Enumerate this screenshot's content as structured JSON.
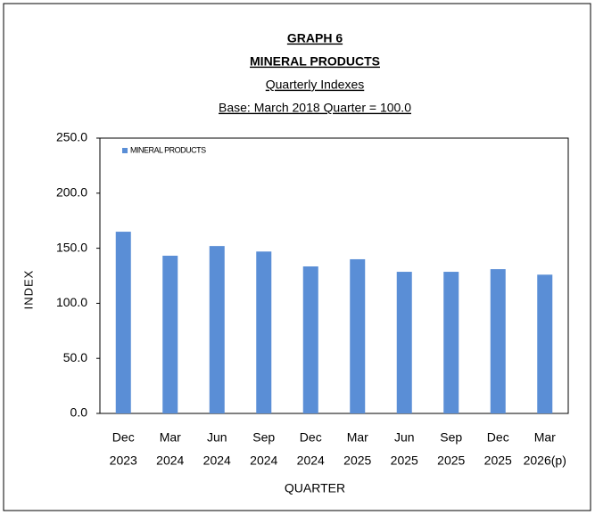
{
  "chart_data": {
    "type": "bar",
    "title": "GRAPH 6",
    "subtitle": "MINERAL PRODUCTS",
    "annotations": [
      "Quarterly Indexes",
      "Base: March 2018 Quarter = 100.0"
    ],
    "x_label": "QUARTER",
    "y_label": "INDEX",
    "categories": [
      [
        "Dec",
        "2023"
      ],
      [
        "Mar",
        "2024"
      ],
      [
        "Jun",
        "2024"
      ],
      [
        "Sep",
        "2024"
      ],
      [
        "Dec",
        "2024"
      ],
      [
        "Mar",
        "2025"
      ],
      [
        "Jun",
        "2025"
      ],
      [
        "Sep",
        "2025"
      ],
      [
        "Dec",
        "2025"
      ],
      [
        "Mar",
        "2026(p)"
      ]
    ],
    "series": [
      {
        "name": "MINERAL PRODUCTS",
        "color": "#5a8ed6",
        "values": [
          165,
          143.2,
          152,
          147,
          133.5,
          140,
          128.6,
          128.6,
          131,
          126
        ]
      }
    ],
    "ylim": [
      0,
      250
    ],
    "yticks": [
      {
        "value": 0,
        "label": "0.0"
      },
      {
        "value": 50,
        "label": "50.0"
      },
      {
        "value": 100,
        "label": "100.0"
      },
      {
        "value": 150,
        "label": "150.0"
      },
      {
        "value": 200,
        "label": "200.0"
      },
      {
        "value": 250,
        "label": "250.0"
      }
    ],
    "legend": "top-left"
  }
}
